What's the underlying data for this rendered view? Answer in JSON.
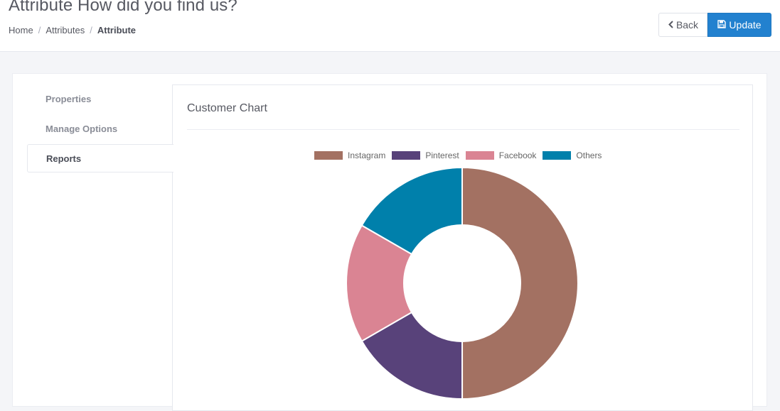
{
  "header": {
    "title": "Attribute How did you find us?",
    "breadcrumb": [
      "Home",
      "Attributes",
      "Attribute"
    ]
  },
  "toolbar": {
    "back_label": "Back",
    "update_label": "Update",
    "back_icon": "chevron-left-icon",
    "update_icon": "floppy-disk-icon"
  },
  "tabs": [
    {
      "label": "Properties",
      "active": false
    },
    {
      "label": "Manage Options",
      "active": false
    },
    {
      "label": "Reports",
      "active": true
    }
  ],
  "panel": {
    "title": "Customer Chart"
  },
  "colors": {
    "accent": "#2281cf",
    "instagram": "#a37162",
    "pinterest": "#58427a",
    "facebook": "#da8493",
    "others": "#0080ab"
  },
  "chart_data": {
    "type": "pie",
    "variant": "doughnut",
    "categories": [
      "Instagram",
      "Pinterest",
      "Facebook",
      "Others"
    ],
    "values": [
      50,
      16.67,
      16.67,
      16.67
    ],
    "colors": [
      "#a37162",
      "#58427a",
      "#da8493",
      "#0080ab"
    ],
    "legend": "top"
  }
}
